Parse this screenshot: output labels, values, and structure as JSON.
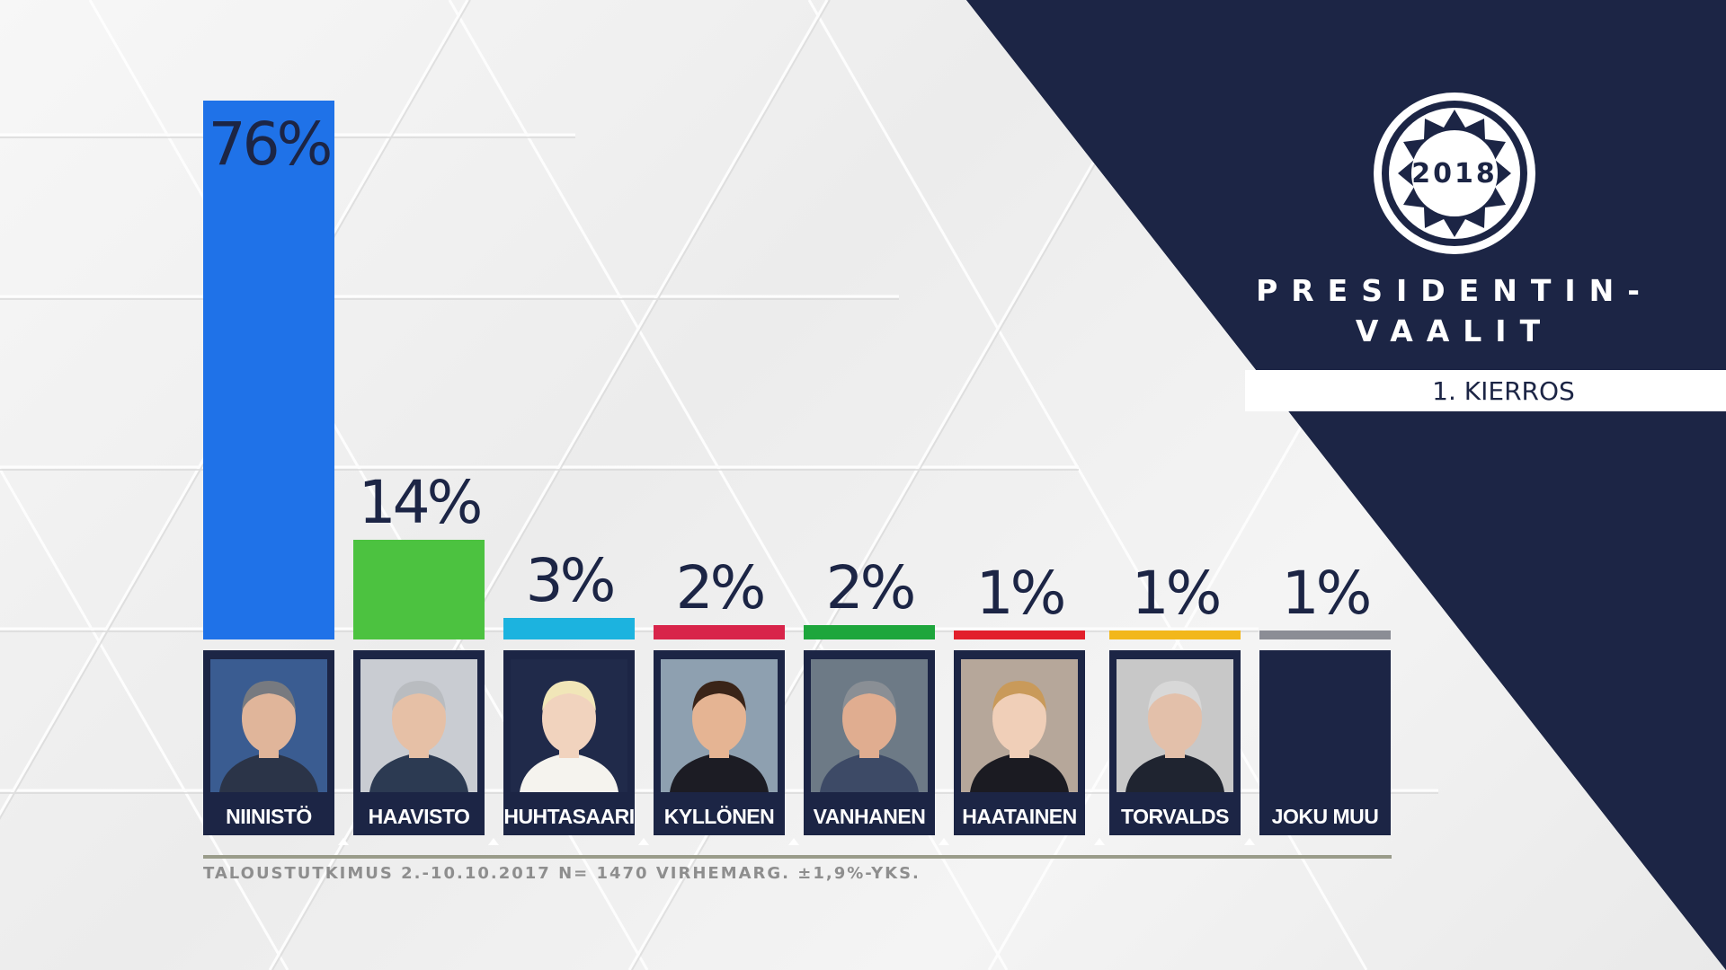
{
  "header": {
    "logo_year": "2018",
    "title_line1": "PRESIDENTIN-",
    "title_line2": "VAALIT",
    "round": "1. KIERROS"
  },
  "colors": {
    "navy": "#1c2545",
    "background": "#f1f1f1"
  },
  "chart_data": {
    "type": "bar",
    "categories": [
      "NIINISTÖ",
      "HAAVISTO",
      "HUHTASAARI",
      "KYLLÖNEN",
      "VANHANEN",
      "HAATAINEN",
      "TORVALDS",
      "JOKU MUU"
    ],
    "values": [
      76,
      14,
      3,
      2,
      2,
      1,
      1,
      1
    ],
    "labels": [
      "76%",
      "14%",
      "3%",
      "2%",
      "2%",
      "1%",
      "1%",
      "1%"
    ],
    "colors": [
      "#1f72e8",
      "#4cc240",
      "#1cb3df",
      "#d8244a",
      "#1ea63c",
      "#e21f2b",
      "#f2b71b",
      "#8b8d95"
    ],
    "photo_shown": [
      true,
      true,
      true,
      true,
      true,
      true,
      true,
      false
    ],
    "ylim": [
      0,
      76
    ],
    "footnote": "TALOUSTUTKIMUS 2.-10.10.2017 N= 1470 VIRHEMARG. ±1,9%-YKS."
  }
}
